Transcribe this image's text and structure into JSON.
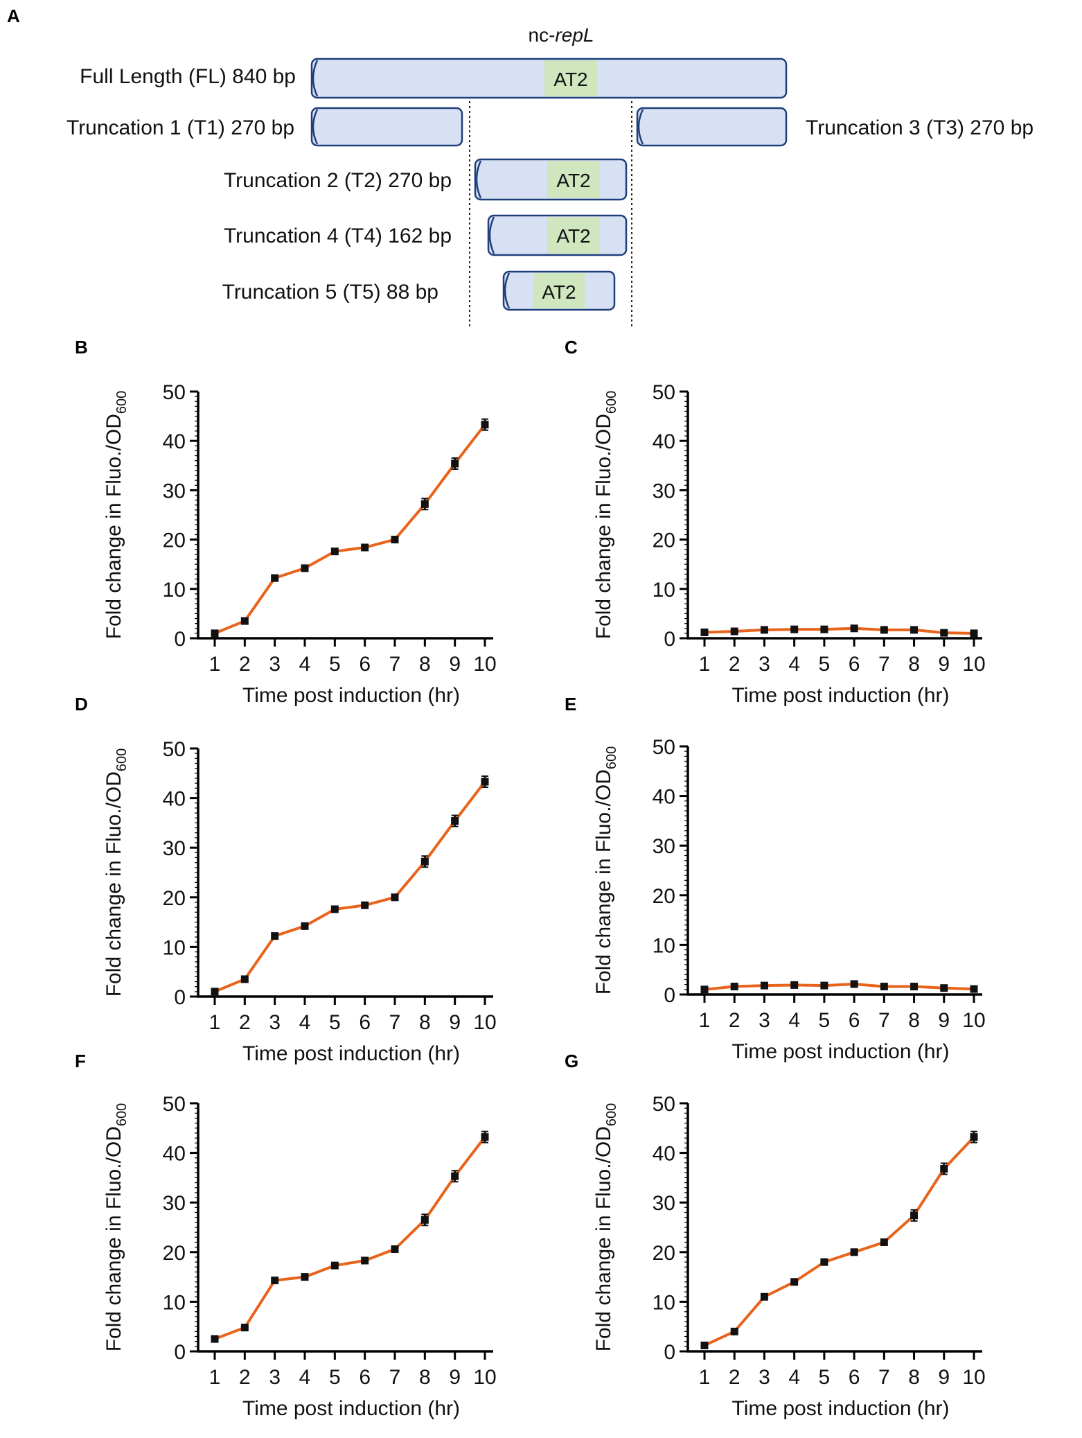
{
  "figure": {
    "panel_a": {
      "letter": "A",
      "gene_label_prefix": "nc-",
      "gene_label_italic": "repL",
      "region_label": "AT2",
      "constructs": [
        {
          "id": "FL",
          "label": "Full Length (FL) 840 bp",
          "has_at2": true
        },
        {
          "id": "T1",
          "label": "Truncation 1 (T1) 270 bp",
          "has_at2": false
        },
        {
          "id": "T3",
          "label": "Truncation 3 (T3) 270 bp",
          "has_at2": false
        },
        {
          "id": "T2",
          "label": "Truncation 2 (T2) 270 bp",
          "has_at2": true
        },
        {
          "id": "T4",
          "label": "Truncation 4 (T4) 162 bp",
          "has_at2": true
        },
        {
          "id": "T5",
          "label": "Truncation 5 (T5) 88 bp",
          "has_at2": true
        }
      ]
    }
  },
  "colors": {
    "bar_fill": "#d7e1f3",
    "bar_stroke": "#1f3f7a",
    "at2_fill": "#cfe6bf",
    "line": "#e8641c",
    "marker": "#111111",
    "axis": "#000000"
  },
  "chart_data": [
    {
      "type": "line",
      "panel": "B",
      "x": [
        1,
        2,
        3,
        4,
        5,
        6,
        7,
        8,
        9,
        10
      ],
      "values": [
        1.0,
        3.5,
        12.2,
        14.2,
        17.6,
        18.4,
        20.0,
        27.2,
        35.4,
        43.3
      ],
      "xlabel": "Time post induction (hr)",
      "ylabel": "Fold change in Fluo./OD",
      "ylabel_sub": "600",
      "ylim": [
        0,
        50
      ],
      "yticks": [
        0,
        10,
        20,
        30,
        40,
        50
      ],
      "xticks": [
        1,
        2,
        3,
        4,
        5,
        6,
        7,
        8,
        9,
        10
      ]
    },
    {
      "type": "line",
      "panel": "C",
      "x": [
        1,
        2,
        3,
        4,
        5,
        6,
        7,
        8,
        9,
        10
      ],
      "values": [
        1.2,
        1.4,
        1.7,
        1.8,
        1.8,
        2.0,
        1.7,
        1.7,
        1.1,
        1.0
      ],
      "xlabel": "Time post induction (hr)",
      "ylabel": "Fold change in Fluo./OD",
      "ylabel_sub": "600",
      "ylim": [
        0,
        50
      ],
      "yticks": [
        0,
        10,
        20,
        30,
        40,
        50
      ],
      "xticks": [
        1,
        2,
        3,
        4,
        5,
        6,
        7,
        8,
        9,
        10
      ]
    },
    {
      "type": "line",
      "panel": "D",
      "x": [
        1,
        2,
        3,
        4,
        5,
        6,
        7,
        8,
        9,
        10
      ],
      "values": [
        1.0,
        3.5,
        12.2,
        14.2,
        17.6,
        18.4,
        20.0,
        27.2,
        35.4,
        43.3
      ],
      "xlabel": "Time post induction (hr)",
      "ylabel": "Fold change in Fluo./OD",
      "ylabel_sub": "600",
      "ylim": [
        0,
        50
      ],
      "yticks": [
        0,
        10,
        20,
        30,
        40,
        50
      ],
      "xticks": [
        1,
        2,
        3,
        4,
        5,
        6,
        7,
        8,
        9,
        10
      ]
    },
    {
      "type": "line",
      "panel": "E",
      "x": [
        1,
        2,
        3,
        4,
        5,
        6,
        7,
        8,
        9,
        10
      ],
      "values": [
        1.0,
        1.6,
        1.8,
        1.9,
        1.8,
        2.1,
        1.6,
        1.6,
        1.3,
        1.1
      ],
      "xlabel": "Time post induction (hr)",
      "ylabel": "Fold change in Fluo./OD",
      "ylabel_sub": "600",
      "ylim": [
        0,
        50
      ],
      "yticks": [
        0,
        10,
        20,
        30,
        40,
        50
      ],
      "xticks": [
        1,
        2,
        3,
        4,
        5,
        6,
        7,
        8,
        9,
        10
      ]
    },
    {
      "type": "line",
      "panel": "F",
      "x": [
        1,
        2,
        3,
        4,
        5,
        6,
        7,
        8,
        9,
        10
      ],
      "values": [
        2.5,
        4.8,
        14.3,
        15.0,
        17.3,
        18.3,
        20.6,
        26.5,
        35.3,
        43.2
      ],
      "xlabel": "Time post induction (hr)",
      "ylabel": "Fold change in Fluo./OD",
      "ylabel_sub": "600",
      "ylim": [
        0,
        50
      ],
      "yticks": [
        0,
        10,
        20,
        30,
        40,
        50
      ],
      "xticks": [
        1,
        2,
        3,
        4,
        5,
        6,
        7,
        8,
        9,
        10
      ]
    },
    {
      "type": "line",
      "panel": "G",
      "x": [
        1,
        2,
        3,
        4,
        5,
        6,
        7,
        8,
        9,
        10
      ],
      "values": [
        1.2,
        4.0,
        11.0,
        14.0,
        18.0,
        20.0,
        22.0,
        27.4,
        36.8,
        43.2
      ],
      "xlabel": "Time post induction (hr)",
      "ylabel": "Fold change in Fluo./OD",
      "ylabel_sub": "600",
      "ylim": [
        0,
        50
      ],
      "yticks": [
        0,
        10,
        20,
        30,
        40,
        50
      ],
      "xticks": [
        1,
        2,
        3,
        4,
        5,
        6,
        7,
        8,
        9,
        10
      ]
    }
  ]
}
